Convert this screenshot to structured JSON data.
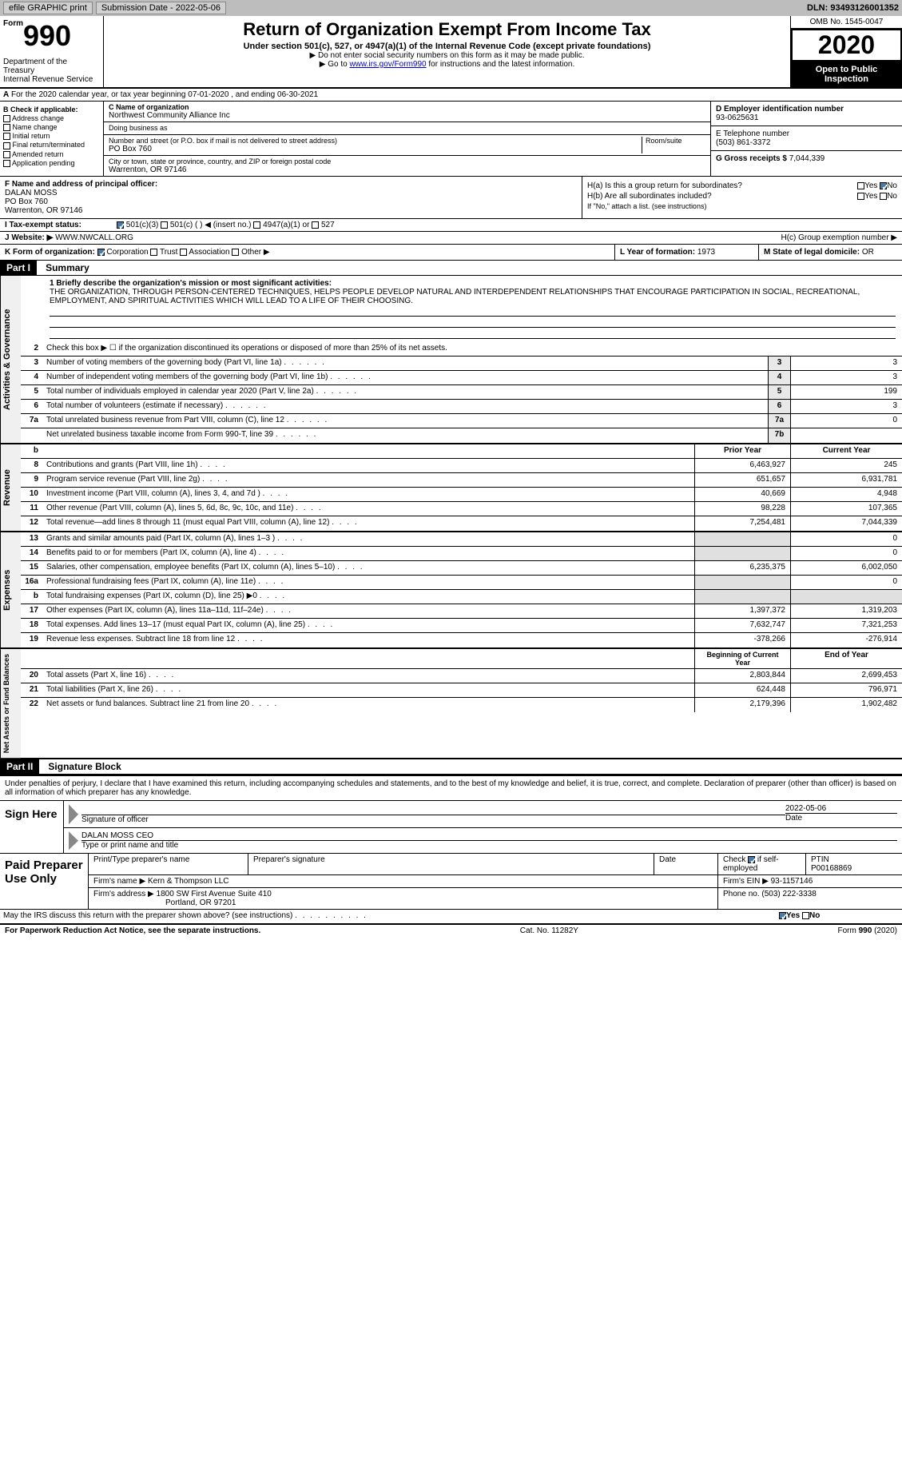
{
  "topbar": {
    "efile": "efile GRAPHIC print",
    "submission_label": "Submission Date - 2022-05-06",
    "dln_label": "DLN: 93493126001352"
  },
  "header": {
    "form_word": "Form",
    "form_num": "990",
    "title": "Return of Organization Exempt From Income Tax",
    "subtitle": "Under section 501(c), 527, or 4947(a)(1) of the Internal Revenue Code (except private foundations)",
    "note1": "▶ Do not enter social security numbers on this form as it may be made public.",
    "note2_pre": "▶ Go to ",
    "note2_link": "www.irs.gov/Form990",
    "note2_post": " for instructions and the latest information.",
    "dept": "Department of the Treasury\nInternal Revenue Service",
    "omb": "OMB No. 1545-0047",
    "year": "2020",
    "inspect": "Open to Public Inspection"
  },
  "period": "For the 2020 calendar year, or tax year beginning 07-01-2020   , and ending 06-30-2021",
  "sectionB": {
    "header": "B Check if applicable:",
    "items": [
      "Address change",
      "Name change",
      "Initial return",
      "Final return/terminated",
      "Amended return",
      "Application pending"
    ]
  },
  "sectionC": {
    "label": "C Name of organization",
    "name": "Northwest Community Alliance Inc",
    "dba_label": "Doing business as",
    "addr_label": "Number and street (or P.O. box if mail is not delivered to street address)",
    "room_label": "Room/suite",
    "addr": "PO Box 760",
    "city_label": "City or town, state or province, country, and ZIP or foreign postal code",
    "city": "Warrenton, OR  97146"
  },
  "sectionD": {
    "label": "D Employer identification number",
    "value": "93-0625631"
  },
  "sectionE": {
    "label": "E Telephone number",
    "value": "(503) 861-3372"
  },
  "sectionG": {
    "label": "G Gross receipts $",
    "value": "7,044,339"
  },
  "sectionF": {
    "label": "F Name and address of principal officer:",
    "name": "DALAN MOSS",
    "addr1": "PO Box 760",
    "addr2": "Warrenton, OR  97146"
  },
  "sectionH": {
    "a": "H(a)  Is this a group return for subordinates?",
    "b": "H(b)  Are all subordinates included?",
    "b_note": "If \"No,\" attach a list. (see instructions)",
    "c": "H(c)  Group exemption number ▶",
    "yes": "Yes",
    "no": "No"
  },
  "sectionI": {
    "label": "I  Tax-exempt status:",
    "opts": [
      "501(c)(3)",
      "501(c) (  ) ◀ (insert no.)",
      "4947(a)(1) or",
      "527"
    ]
  },
  "sectionJ": {
    "label": "J  Website: ▶",
    "value": "WWW.NWCALL.ORG"
  },
  "sectionK": {
    "label": "K Form of organization:",
    "opts": [
      "Corporation",
      "Trust",
      "Association",
      "Other ▶"
    ]
  },
  "sectionL": {
    "label": "L Year of formation:",
    "value": "1973"
  },
  "sectionM": {
    "label": "M State of legal domicile:",
    "value": "OR"
  },
  "part1": {
    "header": "Part I",
    "title": "Summary",
    "mission_label": "1  Briefly describe the organization's mission or most significant activities:",
    "mission": "THE ORGANIZATION, THROUGH PERSON-CENTERED TECHNIQUES, HELPS PEOPLE DEVELOP NATURAL AND INTERDEPENDENT RELATIONSHIPS THAT ENCOURAGE PARTICIPATION IN SOCIAL, RECREATIONAL, EMPLOYMENT, AND SPIRITUAL ACTIVITIES WHICH WILL LEAD TO A LIFE OF THEIR CHOOSING.",
    "line2": "Check this box ▶ ☐ if the organization discontinued its operations or disposed of more than 25% of its net assets."
  },
  "sides": {
    "gov": "Activities & Governance",
    "rev": "Revenue",
    "exp": "Expenses",
    "net": "Net Assets or Fund Balances"
  },
  "gov_lines": [
    {
      "n": "3",
      "d": "Number of voting members of the governing body (Part VI, line 1a)",
      "box": "3",
      "v": "3"
    },
    {
      "n": "4",
      "d": "Number of independent voting members of the governing body (Part VI, line 1b)",
      "box": "4",
      "v": "3"
    },
    {
      "n": "5",
      "d": "Total number of individuals employed in calendar year 2020 (Part V, line 2a)",
      "box": "5",
      "v": "199"
    },
    {
      "n": "6",
      "d": "Total number of volunteers (estimate if necessary)",
      "box": "6",
      "v": "3"
    },
    {
      "n": "7a",
      "d": "Total unrelated business revenue from Part VIII, column (C), line 12",
      "box": "7a",
      "v": "0"
    },
    {
      "n": "",
      "d": "Net unrelated business taxable income from Form 990-T, line 39",
      "box": "7b",
      "v": ""
    }
  ],
  "col_headers": {
    "b": "b",
    "prior": "Prior Year",
    "current": "Current Year"
  },
  "rev_lines": [
    {
      "n": "8",
      "d": "Contributions and grants (Part VIII, line 1h)",
      "p": "6,463,927",
      "c": "245"
    },
    {
      "n": "9",
      "d": "Program service revenue (Part VIII, line 2g)",
      "p": "651,657",
      "c": "6,931,781"
    },
    {
      "n": "10",
      "d": "Investment income (Part VIII, column (A), lines 3, 4, and 7d )",
      "p": "40,669",
      "c": "4,948"
    },
    {
      "n": "11",
      "d": "Other revenue (Part VIII, column (A), lines 5, 6d, 8c, 9c, 10c, and 11e)",
      "p": "98,228",
      "c": "107,365"
    },
    {
      "n": "12",
      "d": "Total revenue—add lines 8 through 11 (must equal Part VIII, column (A), line 12)",
      "p": "7,254,481",
      "c": "7,044,339"
    }
  ],
  "exp_lines": [
    {
      "n": "13",
      "d": "Grants and similar amounts paid (Part IX, column (A), lines 1–3 )",
      "p": "",
      "c": "0"
    },
    {
      "n": "14",
      "d": "Benefits paid to or for members (Part IX, column (A), line 4)",
      "p": "",
      "c": "0"
    },
    {
      "n": "15",
      "d": "Salaries, other compensation, employee benefits (Part IX, column (A), lines 5–10)",
      "p": "6,235,375",
      "c": "6,002,050"
    },
    {
      "n": "16a",
      "d": "Professional fundraising fees (Part IX, column (A), line 11e)",
      "p": "",
      "c": "0"
    },
    {
      "n": "b",
      "d": "Total fundraising expenses (Part IX, column (D), line 25) ▶0",
      "p": "",
      "c": ""
    },
    {
      "n": "17",
      "d": "Other expenses (Part IX, column (A), lines 11a–11d, 11f–24e)",
      "p": "1,397,372",
      "c": "1,319,203"
    },
    {
      "n": "18",
      "d": "Total expenses. Add lines 13–17 (must equal Part IX, column (A), line 25)",
      "p": "7,632,747",
      "c": "7,321,253"
    },
    {
      "n": "19",
      "d": "Revenue less expenses. Subtract line 18 from line 12",
      "p": "-378,266",
      "c": "-276,914"
    }
  ],
  "net_headers": {
    "begin": "Beginning of Current Year",
    "end": "End of Year"
  },
  "net_lines": [
    {
      "n": "20",
      "d": "Total assets (Part X, line 16)",
      "p": "2,803,844",
      "c": "2,699,453"
    },
    {
      "n": "21",
      "d": "Total liabilities (Part X, line 26)",
      "p": "624,448",
      "c": "796,971"
    },
    {
      "n": "22",
      "d": "Net assets or fund balances. Subtract line 21 from line 20",
      "p": "2,179,396",
      "c": "1,902,482"
    }
  ],
  "part2": {
    "header": "Part II",
    "title": "Signature Block",
    "decl": "Under penalties of perjury, I declare that I have examined this return, including accompanying schedules and statements, and to the best of my knowledge and belief, it is true, correct, and complete. Declaration of preparer (other than officer) is based on all information of which preparer has any knowledge."
  },
  "sign": {
    "here": "Sign Here",
    "sig_label": "Signature of officer",
    "date": "2022-05-06",
    "date_label": "Date",
    "name": "DALAN MOSS CEO",
    "name_label": "Type or print name and title"
  },
  "paid": {
    "label": "Paid Preparer Use Only",
    "h1": "Print/Type preparer's name",
    "h2": "Preparer's signature",
    "h3": "Date",
    "h4_pre": "Check",
    "h4_post": "if self-employed",
    "h5": "PTIN",
    "ptin": "P00168869",
    "firm_label": "Firm's name    ▶",
    "firm": "Kern & Thompson LLC",
    "ein_label": "Firm's EIN ▶",
    "ein": "93-1157146",
    "addr_label": "Firm's address ▶",
    "addr1": "1800 SW First Avenue Suite 410",
    "addr2": "Portland, OR  97201",
    "phone_label": "Phone no.",
    "phone": "(503) 222-3338"
  },
  "discuss": {
    "q": "May the IRS discuss this return with the preparer shown above? (see instructions)",
    "yes": "Yes",
    "no": "No"
  },
  "footer": {
    "left": "For Paperwork Reduction Act Notice, see the separate instructions.",
    "mid": "Cat. No. 11282Y",
    "right": "Form 990 (2020)"
  }
}
